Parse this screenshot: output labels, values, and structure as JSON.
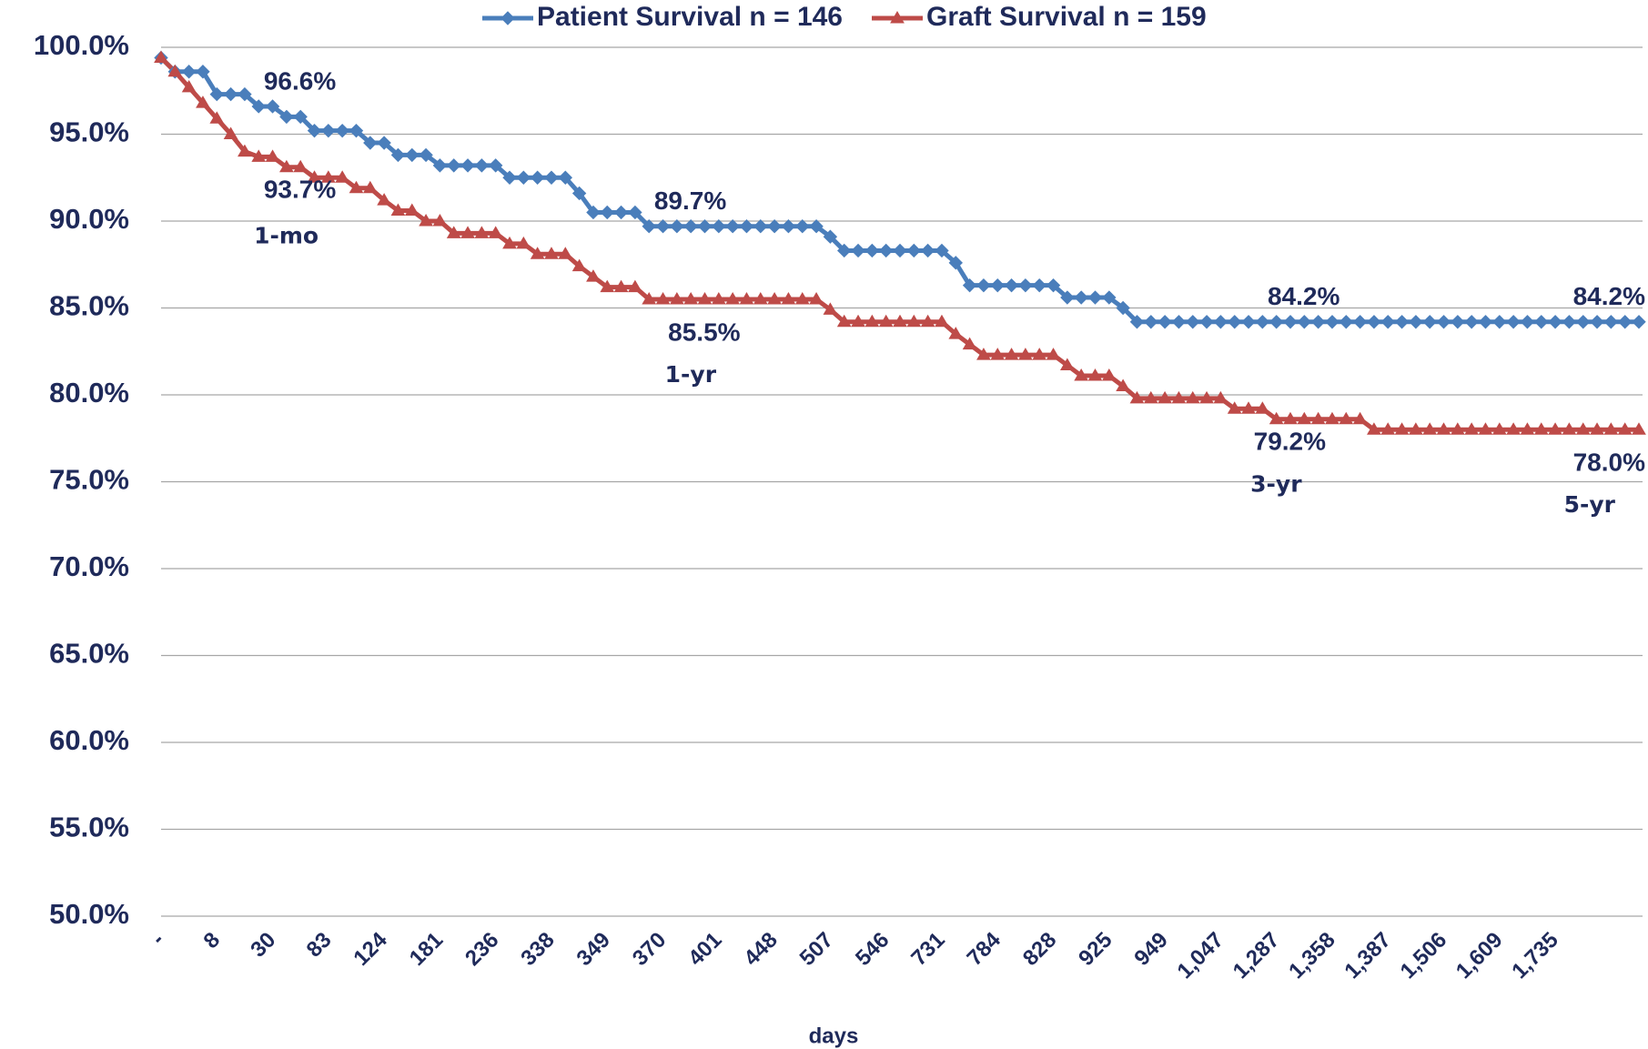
{
  "chart_data": {
    "type": "line",
    "x_label": "days",
    "categories": [
      "-",
      null,
      null,
      null,
      "8",
      null,
      null,
      null,
      "30",
      null,
      null,
      null,
      "83",
      null,
      null,
      null,
      "124",
      null,
      null,
      null,
      "181",
      null,
      null,
      null,
      "236",
      null,
      null,
      null,
      "338",
      null,
      null,
      null,
      "349",
      null,
      null,
      null,
      "370",
      null,
      null,
      null,
      "401",
      null,
      null,
      null,
      "448",
      null,
      null,
      null,
      "507",
      null,
      null,
      null,
      "546",
      null,
      null,
      null,
      "731",
      null,
      null,
      null,
      "784",
      null,
      null,
      null,
      "828",
      null,
      null,
      null,
      "925",
      null,
      null,
      null,
      "949",
      null,
      null,
      null,
      "1,047",
      null,
      null,
      null,
      "1,287",
      null,
      null,
      null,
      "1,358",
      null,
      null,
      null,
      "1,387",
      null,
      null,
      null,
      "1,506",
      null,
      null,
      null,
      "1,609",
      null,
      null,
      null,
      "1,735",
      null,
      null,
      null,
      null,
      null,
      null
    ],
    "period_labels": [
      null,
      null,
      null,
      null,
      null,
      null,
      null,
      null,
      "1-mo",
      null,
      null,
      null,
      null,
      null,
      null,
      null,
      null,
      null,
      null,
      null,
      null,
      null,
      null,
      null,
      null,
      null,
      null,
      null,
      null,
      null,
      null,
      null,
      null,
      null,
      null,
      null,
      null,
      "1-yr",
      null,
      null,
      null,
      null,
      null,
      null,
      null,
      null,
      null,
      null,
      null,
      null,
      null,
      null,
      null,
      null,
      null,
      null,
      null,
      null,
      null,
      null,
      null,
      null,
      null,
      null,
      null,
      null,
      null,
      null,
      null,
      null,
      null,
      null,
      null,
      null,
      null,
      null,
      null,
      null,
      null,
      "3-yr",
      null,
      null,
      null,
      null,
      null,
      null,
      null,
      null,
      null,
      null,
      null,
      null,
      null,
      null,
      null,
      null,
      null,
      null,
      null,
      null,
      null,
      null,
      null,
      null,
      null,
      null,
      "5-yr"
    ],
    "series": [
      {
        "name": "Patient Survival n = 146",
        "color": "#4a7ebb",
        "marker": "diamond",
        "label_side": "above",
        "values": [
          99.4,
          98.6,
          98.6,
          98.6,
          97.3,
          97.3,
          97.3,
          96.6,
          96.6,
          96.0,
          96.0,
          95.2,
          95.2,
          95.2,
          95.2,
          94.5,
          94.5,
          93.8,
          93.8,
          93.8,
          93.2,
          93.2,
          93.2,
          93.2,
          93.2,
          92.5,
          92.5,
          92.5,
          92.5,
          92.5,
          91.6,
          90.5,
          90.5,
          90.5,
          90.5,
          89.7,
          89.7,
          89.7,
          89.7,
          89.7,
          89.7,
          89.7,
          89.7,
          89.7,
          89.7,
          89.7,
          89.7,
          89.7,
          89.1,
          88.3,
          88.3,
          88.3,
          88.3,
          88.3,
          88.3,
          88.3,
          88.3,
          87.6,
          86.3,
          86.3,
          86.3,
          86.3,
          86.3,
          86.3,
          86.3,
          85.6,
          85.6,
          85.6,
          85.6,
          85.0,
          84.2,
          84.2,
          84.2,
          84.2,
          84.2,
          84.2,
          84.2,
          84.2,
          84.2,
          84.2,
          84.2,
          84.2,
          84.2,
          84.2,
          84.2,
          84.2,
          84.2,
          84.2,
          84.2,
          84.2,
          84.2,
          84.2,
          84.2,
          84.2,
          84.2,
          84.2,
          84.2,
          84.2,
          84.2,
          84.2,
          84.2,
          84.2,
          84.2,
          84.2,
          84.2,
          84.2,
          84.2
        ],
        "value_labels": [
          null,
          null,
          null,
          null,
          null,
          null,
          null,
          null,
          "96.6%",
          null,
          null,
          null,
          null,
          null,
          null,
          null,
          null,
          null,
          null,
          null,
          null,
          null,
          null,
          null,
          null,
          null,
          null,
          null,
          null,
          null,
          null,
          null,
          null,
          null,
          null,
          null,
          "89.7%",
          null,
          null,
          null,
          null,
          null,
          null,
          null,
          null,
          null,
          null,
          null,
          null,
          null,
          null,
          null,
          null,
          null,
          null,
          null,
          null,
          null,
          null,
          null,
          null,
          null,
          null,
          null,
          null,
          null,
          null,
          null,
          null,
          null,
          null,
          null,
          null,
          null,
          null,
          null,
          null,
          null,
          null,
          null,
          "84.2%",
          null,
          null,
          null,
          null,
          null,
          null,
          null,
          null,
          null,
          null,
          null,
          null,
          null,
          null,
          null,
          null,
          null,
          null,
          null,
          null,
          null,
          null,
          null,
          null,
          null,
          "84.2%"
        ]
      },
      {
        "name": "Graft Survival n = 159",
        "color": "#be4b48",
        "marker": "triangle",
        "label_side": "below",
        "values": [
          99.4,
          98.6,
          97.7,
          96.8,
          95.9,
          95.0,
          94.0,
          93.7,
          93.7,
          93.1,
          93.1,
          92.5,
          92.5,
          92.5,
          91.9,
          91.9,
          91.2,
          90.6,
          90.6,
          90.0,
          90.0,
          89.3,
          89.3,
          89.3,
          89.3,
          88.7,
          88.7,
          88.1,
          88.1,
          88.1,
          87.4,
          86.8,
          86.2,
          86.2,
          86.2,
          85.5,
          85.5,
          85.5,
          85.5,
          85.5,
          85.5,
          85.5,
          85.5,
          85.5,
          85.5,
          85.5,
          85.5,
          85.5,
          84.9,
          84.2,
          84.2,
          84.2,
          84.2,
          84.2,
          84.2,
          84.2,
          84.2,
          83.5,
          82.9,
          82.3,
          82.3,
          82.3,
          82.3,
          82.3,
          82.3,
          81.7,
          81.1,
          81.1,
          81.1,
          80.5,
          79.8,
          79.8,
          79.8,
          79.8,
          79.8,
          79.8,
          79.8,
          79.2,
          79.2,
          79.2,
          78.6,
          78.6,
          78.6,
          78.6,
          78.6,
          78.6,
          78.6,
          78.0,
          78.0,
          78.0,
          78.0,
          78.0,
          78.0,
          78.0,
          78.0,
          78.0,
          78.0,
          78.0,
          78.0,
          78.0,
          78.0,
          78.0,
          78.0,
          78.0,
          78.0,
          78.0,
          78.0
        ],
        "value_labels": [
          null,
          null,
          null,
          null,
          null,
          null,
          null,
          null,
          "93.7%",
          null,
          null,
          null,
          null,
          null,
          null,
          null,
          null,
          null,
          null,
          null,
          null,
          null,
          null,
          null,
          null,
          null,
          null,
          null,
          null,
          null,
          null,
          null,
          null,
          null,
          null,
          null,
          null,
          "85.5%",
          null,
          null,
          null,
          null,
          null,
          null,
          null,
          null,
          null,
          null,
          null,
          null,
          null,
          null,
          null,
          null,
          null,
          null,
          null,
          null,
          null,
          null,
          null,
          null,
          null,
          null,
          null,
          null,
          null,
          null,
          null,
          null,
          null,
          null,
          null,
          null,
          null,
          null,
          null,
          null,
          null,
          "79.2%",
          null,
          null,
          null,
          null,
          null,
          null,
          null,
          null,
          null,
          null,
          null,
          null,
          null,
          null,
          null,
          null,
          null,
          null,
          null,
          null,
          null,
          null,
          null,
          null,
          null,
          null,
          "78.0%"
        ]
      }
    ],
    "ylim": [
      50,
      100
    ],
    "yticks": [
      {
        "value": 50,
        "label": "50.0%"
      },
      {
        "value": 55,
        "label": "55.0%"
      },
      {
        "value": 60,
        "label": "60.0%"
      },
      {
        "value": 65,
        "label": "65.0%"
      },
      {
        "value": 70,
        "label": "70.0%"
      },
      {
        "value": 75,
        "label": "75.0%"
      },
      {
        "value": 80,
        "label": "80.0%"
      },
      {
        "value": 85,
        "label": "85.0%"
      },
      {
        "value": 90,
        "label": "90.0%"
      },
      {
        "value": 95,
        "label": "95.0%"
      },
      {
        "value": 100,
        "label": "100.0%"
      }
    ],
    "grid": true,
    "legend": "top"
  }
}
